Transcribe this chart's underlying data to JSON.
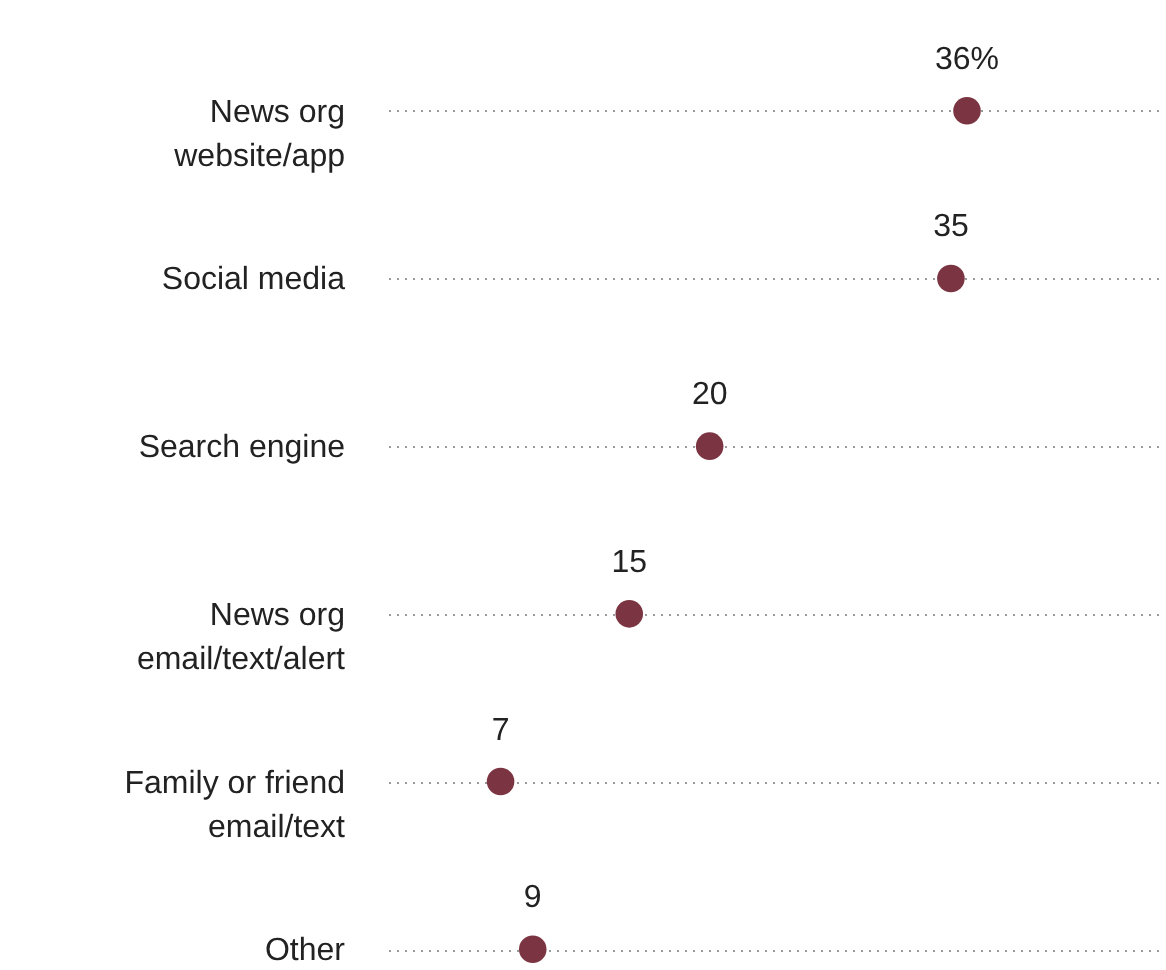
{
  "chart_data": {
    "type": "scatter",
    "orientation": "horizontal",
    "categories": [
      "News org\nwebsite/app",
      "Social media",
      "Search engine",
      "News org\nemail/text/alert",
      "Family or friend\nemail/text",
      "Other"
    ],
    "values": [
      36,
      35,
      20,
      15,
      7,
      9
    ],
    "value_labels": [
      "36%",
      "35",
      "20",
      "15",
      "7",
      "9"
    ],
    "color": "#7b3441",
    "marker": "circle",
    "xlim": [
      0,
      48
    ],
    "grid": "y",
    "tick_labels": "y"
  }
}
